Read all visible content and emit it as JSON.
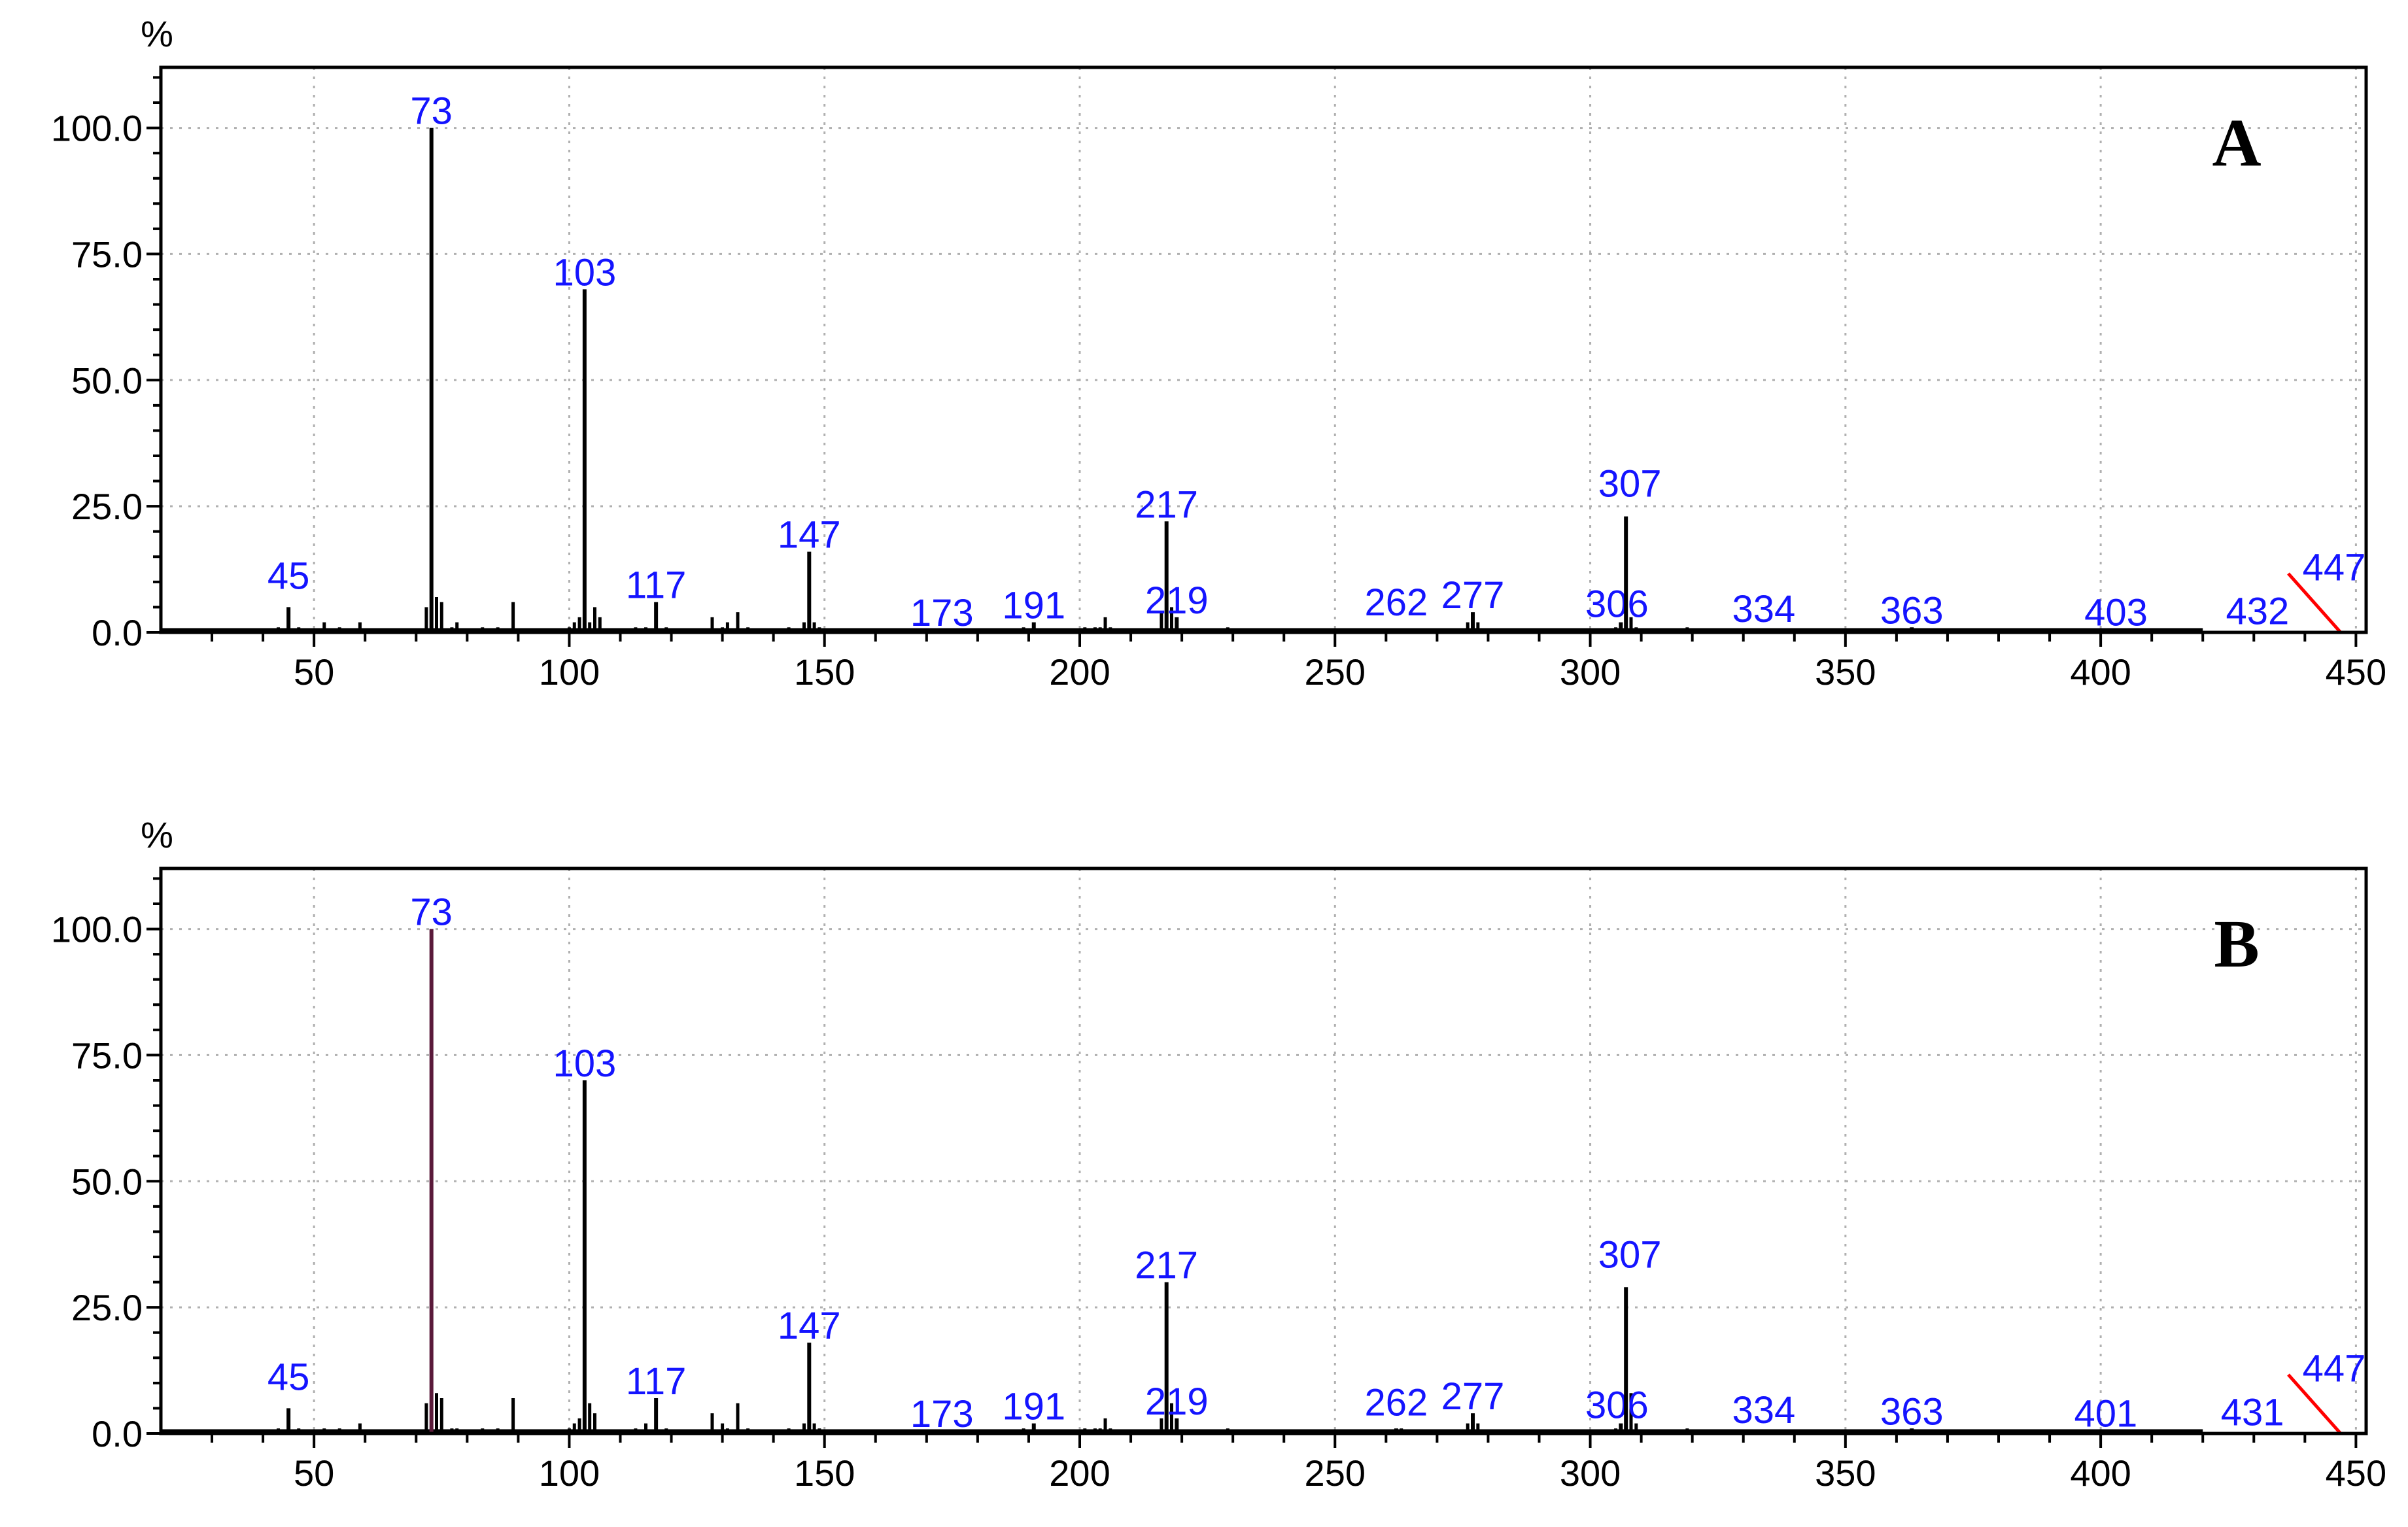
{
  "colors": {
    "bar": "#000000",
    "base_peak_bar_panel_b": "#5a1a3a",
    "peak_label": "#1414ff",
    "end_marker": "#ff0000",
    "grid": "#b0b0b0"
  },
  "chart_data": [
    {
      "type": "bar",
      "panel_label": "A",
      "ylabel": "%",
      "xlim": [
        20,
        452
      ],
      "ylim": [
        0,
        112
      ],
      "x_ticks": [
        50,
        100,
        150,
        200,
        250,
        300,
        350,
        400,
        450
      ],
      "y_ticks": [
        "0.0",
        "25.0",
        "50.0",
        "75.0",
        "100.0"
      ],
      "grid": true,
      "peaks": [
        {
          "mz": 45,
          "intensity": 5,
          "label": "45"
        },
        {
          "mz": 73,
          "intensity": 100,
          "label": "73"
        },
        {
          "mz": 103,
          "intensity": 68,
          "label": "103"
        },
        {
          "mz": 117,
          "intensity": 6,
          "label": "117"
        },
        {
          "mz": 147,
          "intensity": 16,
          "label": "147"
        },
        {
          "mz": 173,
          "intensity": 0.5,
          "label": "173"
        },
        {
          "mz": 191,
          "intensity": 2,
          "label": "191"
        },
        {
          "mz": 217,
          "intensity": 22,
          "label": "217"
        },
        {
          "mz": 219,
          "intensity": 3,
          "label": "219"
        },
        {
          "mz": 262,
          "intensity": 0.8,
          "label": "262"
        },
        {
          "mz": 277,
          "intensity": 4,
          "label": "277"
        },
        {
          "mz": 306,
          "intensity": 2,
          "label": "306"
        },
        {
          "mz": 307,
          "intensity": 23,
          "label": "307"
        },
        {
          "mz": 334,
          "intensity": 0.5,
          "label": "334"
        },
        {
          "mz": 363,
          "intensity": 1,
          "label": "363"
        },
        {
          "mz": 403,
          "intensity": 0.3,
          "label": "403"
        },
        {
          "mz": 432,
          "intensity": 0.3,
          "label": "432"
        },
        {
          "mz": 447,
          "intensity": 0.2,
          "label": "447"
        }
      ],
      "minor_peaks": [
        {
          "mz": 43,
          "intensity": 1
        },
        {
          "mz": 47,
          "intensity": 1
        },
        {
          "mz": 52,
          "intensity": 2
        },
        {
          "mz": 55,
          "intensity": 1
        },
        {
          "mz": 59,
          "intensity": 2
        },
        {
          "mz": 72,
          "intensity": 5
        },
        {
          "mz": 74,
          "intensity": 7
        },
        {
          "mz": 75,
          "intensity": 6
        },
        {
          "mz": 77,
          "intensity": 1
        },
        {
          "mz": 78,
          "intensity": 2
        },
        {
          "mz": 83,
          "intensity": 1
        },
        {
          "mz": 86,
          "intensity": 1
        },
        {
          "mz": 89,
          "intensity": 6
        },
        {
          "mz": 100,
          "intensity": 1
        },
        {
          "mz": 101,
          "intensity": 2
        },
        {
          "mz": 102,
          "intensity": 3
        },
        {
          "mz": 104,
          "intensity": 2
        },
        {
          "mz": 105,
          "intensity": 5
        },
        {
          "mz": 106,
          "intensity": 3
        },
        {
          "mz": 113,
          "intensity": 1
        },
        {
          "mz": 115,
          "intensity": 1
        },
        {
          "mz": 119,
          "intensity": 1
        },
        {
          "mz": 128,
          "intensity": 3
        },
        {
          "mz": 130,
          "intensity": 1
        },
        {
          "mz": 131,
          "intensity": 2
        },
        {
          "mz": 133,
          "intensity": 4
        },
        {
          "mz": 135,
          "intensity": 1
        },
        {
          "mz": 143,
          "intensity": 1
        },
        {
          "mz": 146,
          "intensity": 2
        },
        {
          "mz": 148,
          "intensity": 2
        },
        {
          "mz": 149,
          "intensity": 1
        },
        {
          "mz": 189,
          "intensity": 1
        },
        {
          "mz": 201,
          "intensity": 1
        },
        {
          "mz": 203,
          "intensity": 1
        },
        {
          "mz": 204,
          "intensity": 1
        },
        {
          "mz": 205,
          "intensity": 3
        },
        {
          "mz": 206,
          "intensity": 1
        },
        {
          "mz": 216,
          "intensity": 4
        },
        {
          "mz": 218,
          "intensity": 5
        },
        {
          "mz": 229,
          "intensity": 1
        },
        {
          "mz": 276,
          "intensity": 2
        },
        {
          "mz": 278,
          "intensity": 2
        },
        {
          "mz": 305,
          "intensity": 1
        },
        {
          "mz": 308,
          "intensity": 3
        },
        {
          "mz": 309,
          "intensity": 1
        },
        {
          "mz": 319,
          "intensity": 1
        }
      ]
    },
    {
      "type": "bar",
      "panel_label": "B",
      "ylabel": "%",
      "xlim": [
        20,
        452
      ],
      "ylim": [
        0,
        112
      ],
      "x_ticks": [
        50,
        100,
        150,
        200,
        250,
        300,
        350,
        400,
        450
      ],
      "y_ticks": [
        "0.0",
        "25.0",
        "50.0",
        "75.0",
        "100.0"
      ],
      "grid": true,
      "peaks": [
        {
          "mz": 45,
          "intensity": 5,
          "label": "45"
        },
        {
          "mz": 73,
          "intensity": 100,
          "label": "73"
        },
        {
          "mz": 103,
          "intensity": 70,
          "label": "103"
        },
        {
          "mz": 117,
          "intensity": 7,
          "label": "117"
        },
        {
          "mz": 147,
          "intensity": 18,
          "label": "147"
        },
        {
          "mz": 173,
          "intensity": 0.5,
          "label": "173"
        },
        {
          "mz": 191,
          "intensity": 2,
          "label": "191"
        },
        {
          "mz": 217,
          "intensity": 30,
          "label": "217"
        },
        {
          "mz": 219,
          "intensity": 3,
          "label": "219"
        },
        {
          "mz": 262,
          "intensity": 1,
          "label": "262"
        },
        {
          "mz": 277,
          "intensity": 4,
          "label": "277"
        },
        {
          "mz": 306,
          "intensity": 2,
          "label": "306"
        },
        {
          "mz": 307,
          "intensity": 29,
          "label": "307"
        },
        {
          "mz": 334,
          "intensity": 0.5,
          "label": "334"
        },
        {
          "mz": 363,
          "intensity": 1,
          "label": "363"
        },
        {
          "mz": 401,
          "intensity": 0.3,
          "label": "401"
        },
        {
          "mz": 431,
          "intensity": 0.3,
          "label": "431"
        },
        {
          "mz": 447,
          "intensity": 0.2,
          "label": "447"
        }
      ],
      "minor_peaks": [
        {
          "mz": 43,
          "intensity": 1
        },
        {
          "mz": 47,
          "intensity": 1
        },
        {
          "mz": 52,
          "intensity": 1
        },
        {
          "mz": 55,
          "intensity": 1
        },
        {
          "mz": 59,
          "intensity": 2
        },
        {
          "mz": 72,
          "intensity": 6
        },
        {
          "mz": 74,
          "intensity": 8
        },
        {
          "mz": 75,
          "intensity": 7
        },
        {
          "mz": 77,
          "intensity": 1
        },
        {
          "mz": 78,
          "intensity": 1
        },
        {
          "mz": 83,
          "intensity": 1
        },
        {
          "mz": 86,
          "intensity": 1
        },
        {
          "mz": 89,
          "intensity": 7
        },
        {
          "mz": 100,
          "intensity": 1
        },
        {
          "mz": 101,
          "intensity": 2
        },
        {
          "mz": 102,
          "intensity": 3
        },
        {
          "mz": 104,
          "intensity": 6
        },
        {
          "mz": 105,
          "intensity": 4
        },
        {
          "mz": 113,
          "intensity": 1
        },
        {
          "mz": 115,
          "intensity": 2
        },
        {
          "mz": 119,
          "intensity": 1
        },
        {
          "mz": 128,
          "intensity": 4
        },
        {
          "mz": 130,
          "intensity": 2
        },
        {
          "mz": 131,
          "intensity": 1
        },
        {
          "mz": 133,
          "intensity": 6
        },
        {
          "mz": 135,
          "intensity": 1
        },
        {
          "mz": 143,
          "intensity": 1
        },
        {
          "mz": 146,
          "intensity": 2
        },
        {
          "mz": 148,
          "intensity": 2
        },
        {
          "mz": 149,
          "intensity": 1
        },
        {
          "mz": 189,
          "intensity": 1
        },
        {
          "mz": 201,
          "intensity": 1
        },
        {
          "mz": 203,
          "intensity": 1
        },
        {
          "mz": 204,
          "intensity": 1
        },
        {
          "mz": 205,
          "intensity": 3
        },
        {
          "mz": 206,
          "intensity": 1
        },
        {
          "mz": 216,
          "intensity": 3
        },
        {
          "mz": 218,
          "intensity": 6
        },
        {
          "mz": 229,
          "intensity": 1
        },
        {
          "mz": 263,
          "intensity": 1
        },
        {
          "mz": 276,
          "intensity": 2
        },
        {
          "mz": 278,
          "intensity": 2
        },
        {
          "mz": 305,
          "intensity": 1
        },
        {
          "mz": 308,
          "intensity": 8
        },
        {
          "mz": 309,
          "intensity": 2
        },
        {
          "mz": 319,
          "intensity": 1
        }
      ]
    }
  ]
}
